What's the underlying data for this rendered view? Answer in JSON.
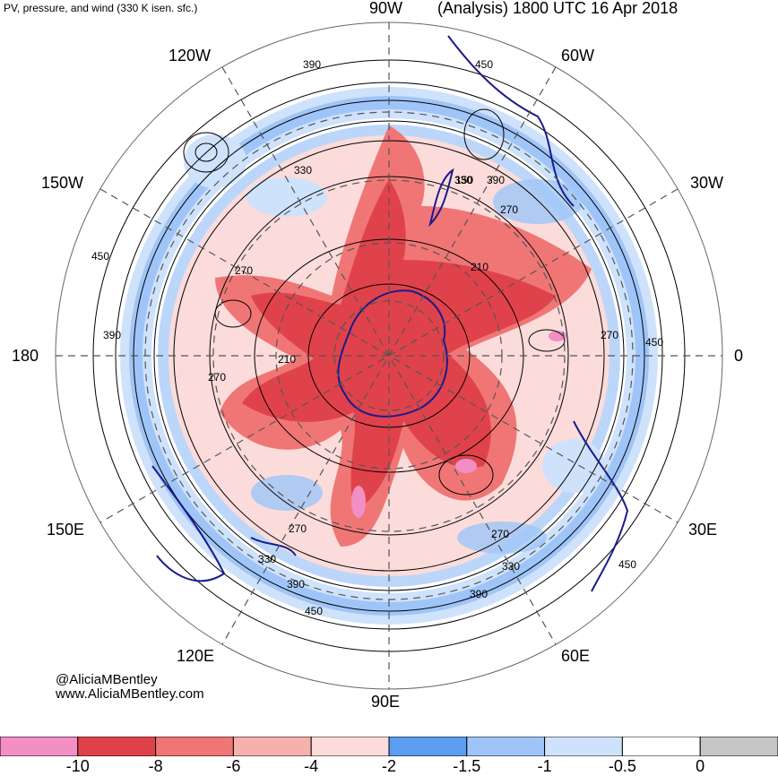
{
  "header": {
    "field_title": "PV, pressure, and wind (330 K isen. sfc.)",
    "run_title": "(Analysis) 1800 UTC 16 Apr 2018"
  },
  "map": {
    "projection": "polar stereographic, south pole centered",
    "longitude_labels": [
      "90W",
      "60W",
      "30W",
      "0",
      "30E",
      "60E",
      "90E",
      "120E",
      "150E",
      "180",
      "150W",
      "120W"
    ],
    "contour_labels": [
      "390",
      "450",
      "330",
      "390",
      "270",
      "150",
      "210",
      "270",
      "450",
      "390",
      "270",
      "210",
      "270",
      "450",
      "270",
      "330",
      "390",
      "330",
      "390",
      "450",
      "270",
      "330",
      "450"
    ],
    "colors": {
      "coastline": "#1a1a8c",
      "contour": "#000000",
      "grid": "#555555"
    }
  },
  "credits": {
    "handle": "@AliciaMBentley",
    "website": "www.AliciaMBentley.com"
  },
  "colorbar": {
    "bins": [
      {
        "color": "#f28fc4"
      },
      {
        "color": "#e0424b"
      },
      {
        "color": "#f07676"
      },
      {
        "color": "#f7b1ad"
      },
      {
        "color": "#fbdcda"
      },
      {
        "color": "#5b9df0"
      },
      {
        "color": "#9fc5f8"
      },
      {
        "color": "#cfe2fb"
      },
      {
        "color": "#ffffff"
      },
      {
        "color": "#c6c6c6"
      }
    ],
    "ticks": [
      "-10",
      "-8",
      "-6",
      "-4",
      "-2",
      "-1.5",
      "-1",
      "-0.5",
      "0"
    ]
  }
}
